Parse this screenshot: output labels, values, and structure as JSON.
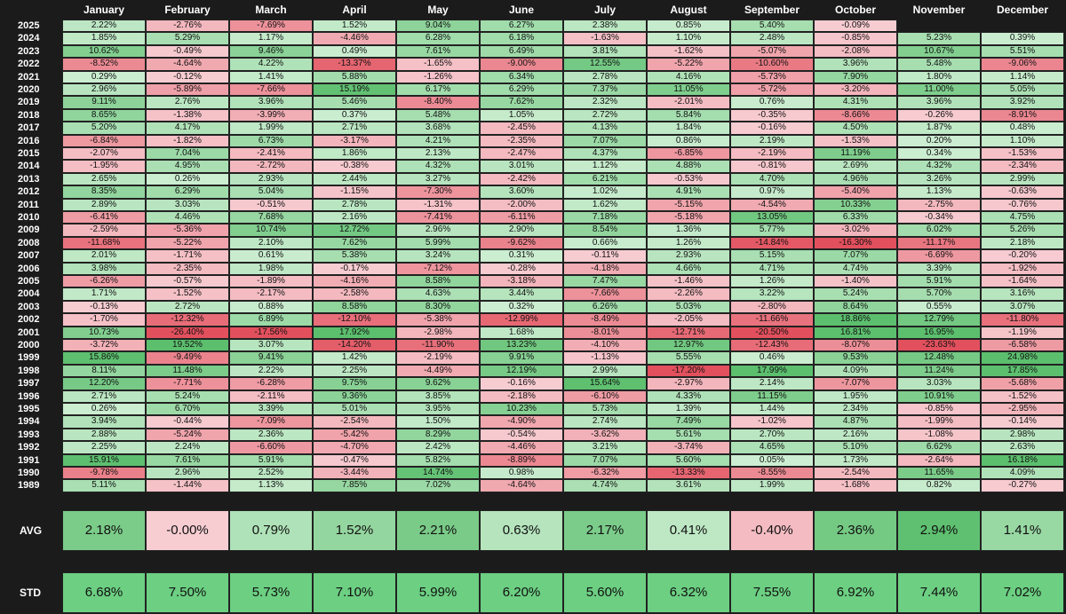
{
  "chart_data": {
    "type": "heatmap",
    "columns": [
      "January",
      "February",
      "March",
      "April",
      "May",
      "June",
      "July",
      "August",
      "September",
      "October",
      "November",
      "December"
    ],
    "rows": [
      {
        "year": "2025",
        "values": [
          "2.22%",
          "-2.76%",
          "-7.69%",
          "1.52%",
          "9.04%",
          "6.27%",
          "2.38%",
          "0.85%",
          "5.40%",
          "-0.09%",
          "",
          ""
        ]
      },
      {
        "year": "2024",
        "values": [
          "1.85%",
          "5.29%",
          "1.17%",
          "-4.46%",
          "6.28%",
          "6.18%",
          "-1.63%",
          "1.10%",
          "2.48%",
          "-0.85%",
          "5.23%",
          "0.39%"
        ]
      },
      {
        "year": "2023",
        "values": [
          "10.62%",
          "-0.49%",
          "9.46%",
          "0.49%",
          "7.61%",
          "6.49%",
          "3.81%",
          "-1.62%",
          "-5.07%",
          "-2.08%",
          "10.67%",
          "5.51%"
        ]
      },
      {
        "year": "2022",
        "values": [
          "-8.52%",
          "-4.64%",
          "4.22%",
          "-13.37%",
          "-1.65%",
          "-9.00%",
          "12.55%",
          "-5.22%",
          "-10.60%",
          "3.96%",
          "5.48%",
          "-9.06%"
        ]
      },
      {
        "year": "2021",
        "values": [
          "0.29%",
          "-0.12%",
          "1.41%",
          "5.88%",
          "-1.26%",
          "6.34%",
          "2.78%",
          "4.16%",
          "-5.73%",
          "7.90%",
          "1.80%",
          "1.14%"
        ]
      },
      {
        "year": "2020",
        "values": [
          "2.96%",
          "-5.89%",
          "-7.66%",
          "15.19%",
          "6.17%",
          "6.29%",
          "7.37%",
          "11.05%",
          "-5.72%",
          "-3.20%",
          "11.00%",
          "5.05%"
        ]
      },
      {
        "year": "2019",
        "values": [
          "9.11%",
          "2.76%",
          "3.96%",
          "5.46%",
          "-8.40%",
          "7.62%",
          "2.32%",
          "-2.01%",
          "0.76%",
          "4.31%",
          "3.96%",
          "3.92%"
        ]
      },
      {
        "year": "2018",
        "values": [
          "8.65%",
          "-1.38%",
          "-3.99%",
          "0.37%",
          "5.48%",
          "1.05%",
          "2.72%",
          "5.84%",
          "-0.35%",
          "-8.66%",
          "-0.26%",
          "-8.91%"
        ]
      },
      {
        "year": "2017",
        "values": [
          "5.20%",
          "4.17%",
          "1.99%",
          "2.71%",
          "3.68%",
          "-2.45%",
          "4.13%",
          "1.84%",
          "-0.16%",
          "4.50%",
          "1.87%",
          "0.48%"
        ]
      },
      {
        "year": "2016",
        "values": [
          "-6.84%",
          "-1.82%",
          "6.73%",
          "-3.17%",
          "4.21%",
          "-2.35%",
          "7.07%",
          "0.86%",
          "2.19%",
          "-1.53%",
          "0.20%",
          "1.10%"
        ]
      },
      {
        "year": "2015",
        "values": [
          "-2.07%",
          "7.04%",
          "-2.41%",
          "1.86%",
          "2.13%",
          "-2.47%",
          "4.37%",
          "-6.85%",
          "-2.19%",
          "11.19%",
          "0.34%",
          "-1.53%"
        ]
      },
      {
        "year": "2014",
        "values": [
          "-1.95%",
          "4.95%",
          "-2.72%",
          "-0.38%",
          "4.32%",
          "3.01%",
          "1.12%",
          "4.88%",
          "-0.81%",
          "2.69%",
          "4.32%",
          "-2.34%"
        ]
      },
      {
        "year": "2013",
        "values": [
          "2.65%",
          "0.26%",
          "2.93%",
          "2.44%",
          "3.27%",
          "-2.42%",
          "6.21%",
          "-0.53%",
          "4.70%",
          "4.96%",
          "3.26%",
          "2.99%"
        ]
      },
      {
        "year": "2012",
        "values": [
          "8.35%",
          "6.29%",
          "5.04%",
          "-1.15%",
          "-7.30%",
          "3.60%",
          "1.02%",
          "4.91%",
          "0.97%",
          "-5.40%",
          "1.13%",
          "-0.63%"
        ]
      },
      {
        "year": "2011",
        "values": [
          "2.89%",
          "3.03%",
          "-0.51%",
          "2.78%",
          "-1.31%",
          "-2.00%",
          "1.62%",
          "-5.15%",
          "-4.54%",
          "10.33%",
          "-2.75%",
          "-0.76%"
        ]
      },
      {
        "year": "2010",
        "values": [
          "-6.41%",
          "4.46%",
          "7.68%",
          "2.16%",
          "-7.41%",
          "-6.11%",
          "7.18%",
          "-5.18%",
          "13.05%",
          "6.33%",
          "-0.34%",
          "4.75%"
        ]
      },
      {
        "year": "2009",
        "values": [
          "-2.59%",
          "-5.36%",
          "10.74%",
          "12.72%",
          "2.96%",
          "2.90%",
          "8.54%",
          "1.36%",
          "5.77%",
          "-3.02%",
          "6.02%",
          "5.26%"
        ]
      },
      {
        "year": "2008",
        "values": [
          "-11.68%",
          "-5.22%",
          "2.10%",
          "7.62%",
          "5.99%",
          "-9.62%",
          "0.66%",
          "1.26%",
          "-14.84%",
          "-16.30%",
          "-11.17%",
          "2.18%"
        ]
      },
      {
        "year": "2007",
        "values": [
          "2.01%",
          "-1.71%",
          "0.61%",
          "5.38%",
          "3.24%",
          "0.31%",
          "-0.11%",
          "2.93%",
          "5.15%",
          "7.07%",
          "-6.69%",
          "-0.20%"
        ]
      },
      {
        "year": "2006",
        "values": [
          "3.98%",
          "-2.35%",
          "1.98%",
          "-0.17%",
          "-7.12%",
          "-0.28%",
          "-4.18%",
          "4.66%",
          "4.71%",
          "4.74%",
          "3.39%",
          "-1.92%"
        ]
      },
      {
        "year": "2005",
        "values": [
          "-6.26%",
          "-0.57%",
          "-1.89%",
          "-4.16%",
          "8.58%",
          "-3.18%",
          "7.47%",
          "-1.46%",
          "1.26%",
          "-1.40%",
          "5.91%",
          "-1.64%"
        ]
      },
      {
        "year": "2004",
        "values": [
          "1.71%",
          "-1.52%",
          "-2.17%",
          "-2.58%",
          "4.63%",
          "3.44%",
          "-7.66%",
          "-2.26%",
          "3.22%",
          "5.24%",
          "5.70%",
          "3.16%"
        ]
      },
      {
        "year": "2003",
        "values": [
          "-0.13%",
          "2.72%",
          "0.88%",
          "8.58%",
          "8.30%",
          "0.32%",
          "6.26%",
          "5.03%",
          "-2.80%",
          "8.64%",
          "0.55%",
          "3.07%"
        ]
      },
      {
        "year": "2002",
        "values": [
          "-1.70%",
          "-12.32%",
          "6.89%",
          "-12.10%",
          "-5.38%",
          "-12.99%",
          "-8.49%",
          "-2.05%",
          "-11.66%",
          "18.86%",
          "12.79%",
          "-11.80%"
        ]
      },
      {
        "year": "2001",
        "values": [
          "10.73%",
          "-26.40%",
          "-17.56%",
          "17.92%",
          "-2.98%",
          "1.68%",
          "-8.01%",
          "-12.71%",
          "-20.50%",
          "16.81%",
          "16.95%",
          "-1.19%"
        ]
      },
      {
        "year": "2000",
        "values": [
          "-3.72%",
          "19.52%",
          "3.07%",
          "-14.20%",
          "-11.90%",
          "13.23%",
          "-4.10%",
          "12.97%",
          "-12.43%",
          "-8.07%",
          "-23.63%",
          "-6.58%"
        ]
      },
      {
        "year": "1999",
        "values": [
          "15.86%",
          "-9.49%",
          "9.41%",
          "1.42%",
          "-2.19%",
          "9.91%",
          "-1.13%",
          "5.55%",
          "0.46%",
          "9.53%",
          "12.48%",
          "24.98%"
        ]
      },
      {
        "year": "1998",
        "values": [
          "8.11%",
          "11.48%",
          "2.22%",
          "2.25%",
          "-4.49%",
          "12.19%",
          "2.99%",
          "-17.20%",
          "17.99%",
          "4.09%",
          "11.24%",
          "17.85%"
        ]
      },
      {
        "year": "1997",
        "values": [
          "12.20%",
          "-7.71%",
          "-6.28%",
          "9.75%",
          "9.62%",
          "-0.16%",
          "15.64%",
          "-2.97%",
          "2.14%",
          "-7.07%",
          "3.03%",
          "-5.68%"
        ]
      },
      {
        "year": "1996",
        "values": [
          "2.71%",
          "5.24%",
          "-2.11%",
          "9.36%",
          "3.85%",
          "-2.18%",
          "-6.10%",
          "4.33%",
          "11.15%",
          "1.95%",
          "10.91%",
          "-1.52%"
        ]
      },
      {
        "year": "1995",
        "values": [
          "0.26%",
          "6.70%",
          "3.39%",
          "5.01%",
          "3.95%",
          "10.23%",
          "5.73%",
          "1.39%",
          "1.44%",
          "2.34%",
          "-0.85%",
          "-2.95%"
        ]
      },
      {
        "year": "1994",
        "values": [
          "3.94%",
          "-0.44%",
          "-7.09%",
          "-2.54%",
          "1.50%",
          "-4.90%",
          "2.74%",
          "7.49%",
          "-1.02%",
          "4.87%",
          "-1.99%",
          "-0.14%"
        ]
      },
      {
        "year": "1993",
        "values": [
          "2.88%",
          "-5.24%",
          "2.36%",
          "-5.42%",
          "8.29%",
          "-0.54%",
          "-3.62%",
          "5.61%",
          "2.70%",
          "2.16%",
          "-1.08%",
          "2.98%"
        ]
      },
      {
        "year": "1992",
        "values": [
          "2.25%",
          "2.24%",
          "-6.60%",
          "-4.70%",
          "2.42%",
          "-4.46%",
          "3.21%",
          "-3.74%",
          "4.65%",
          "5.10%",
          "6.62%",
          "2.63%"
        ]
      },
      {
        "year": "1991",
        "values": [
          "15.91%",
          "7.61%",
          "5.91%",
          "-0.47%",
          "5.82%",
          "-8.89%",
          "7.07%",
          "5.60%",
          "0.05%",
          "1.73%",
          "-2.64%",
          "16.18%"
        ]
      },
      {
        "year": "1990",
        "values": [
          "-9.78%",
          "2.96%",
          "2.52%",
          "-3.44%",
          "14.74%",
          "0.98%",
          "-6.32%",
          "-13.33%",
          "-8.55%",
          "-2.54%",
          "11.65%",
          "4.09%"
        ]
      },
      {
        "year": "1989",
        "values": [
          "5.11%",
          "-1.44%",
          "1.13%",
          "7.85%",
          "7.02%",
          "-4.64%",
          "4.74%",
          "3.61%",
          "1.99%",
          "-1.68%",
          "0.82%",
          "-0.27%"
        ]
      }
    ],
    "summary": [
      {
        "label": "AVG",
        "values": [
          "2.18%",
          "-0.00%",
          "0.79%",
          "1.52%",
          "2.21%",
          "0.63%",
          "2.17%",
          "0.41%",
          "-0.40%",
          "2.36%",
          "2.94%",
          "1.41%"
        ]
      },
      {
        "label": "STD",
        "values": [
          "6.68%",
          "7.50%",
          "5.73%",
          "7.10%",
          "5.99%",
          "6.20%",
          "5.60%",
          "6.32%",
          "7.55%",
          "6.92%",
          "7.44%",
          "7.02%"
        ]
      }
    ]
  },
  "colors": {
    "background": "#1b1b1b",
    "positive_strong": "#5cbf6e",
    "positive_light": "#cdeed2",
    "negative_strong": "#e2505d",
    "negative_light": "#f7cdd2",
    "summary_neutral": "#6ccf82"
  }
}
